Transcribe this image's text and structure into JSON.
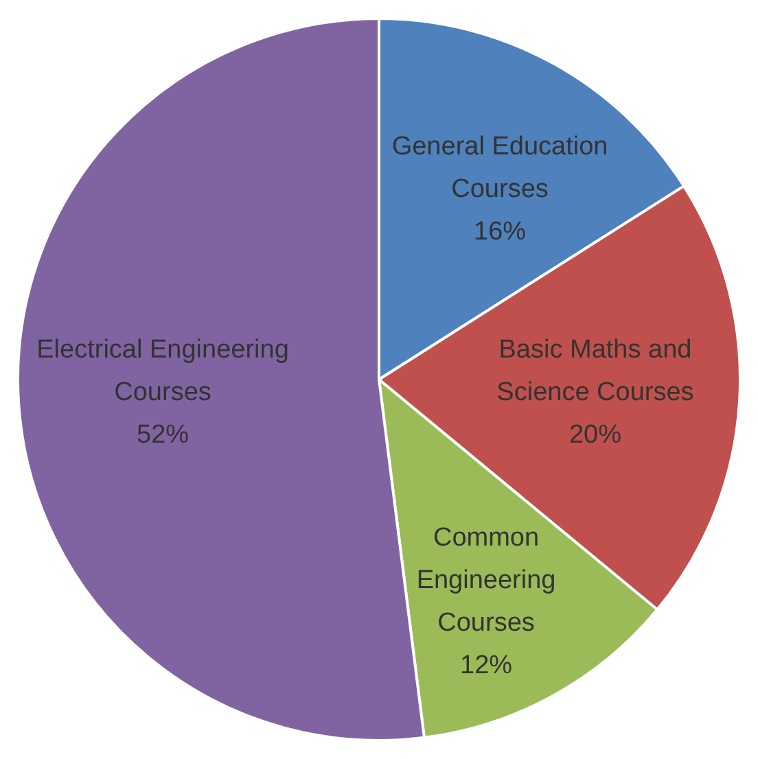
{
  "chart_data": {
    "type": "pie",
    "categories": [
      "General Education Courses",
      "Basic Maths and Science Courses",
      "Common Engineering Courses",
      "Electrical Engineering Courses"
    ],
    "values": [
      16,
      20,
      12,
      52
    ],
    "colors": [
      "#4f81bd",
      "#c0504d",
      "#9bbb59",
      "#8064a2"
    ],
    "value_labels": [
      "16%",
      "20%",
      "12%",
      "52%"
    ],
    "legend": false
  }
}
